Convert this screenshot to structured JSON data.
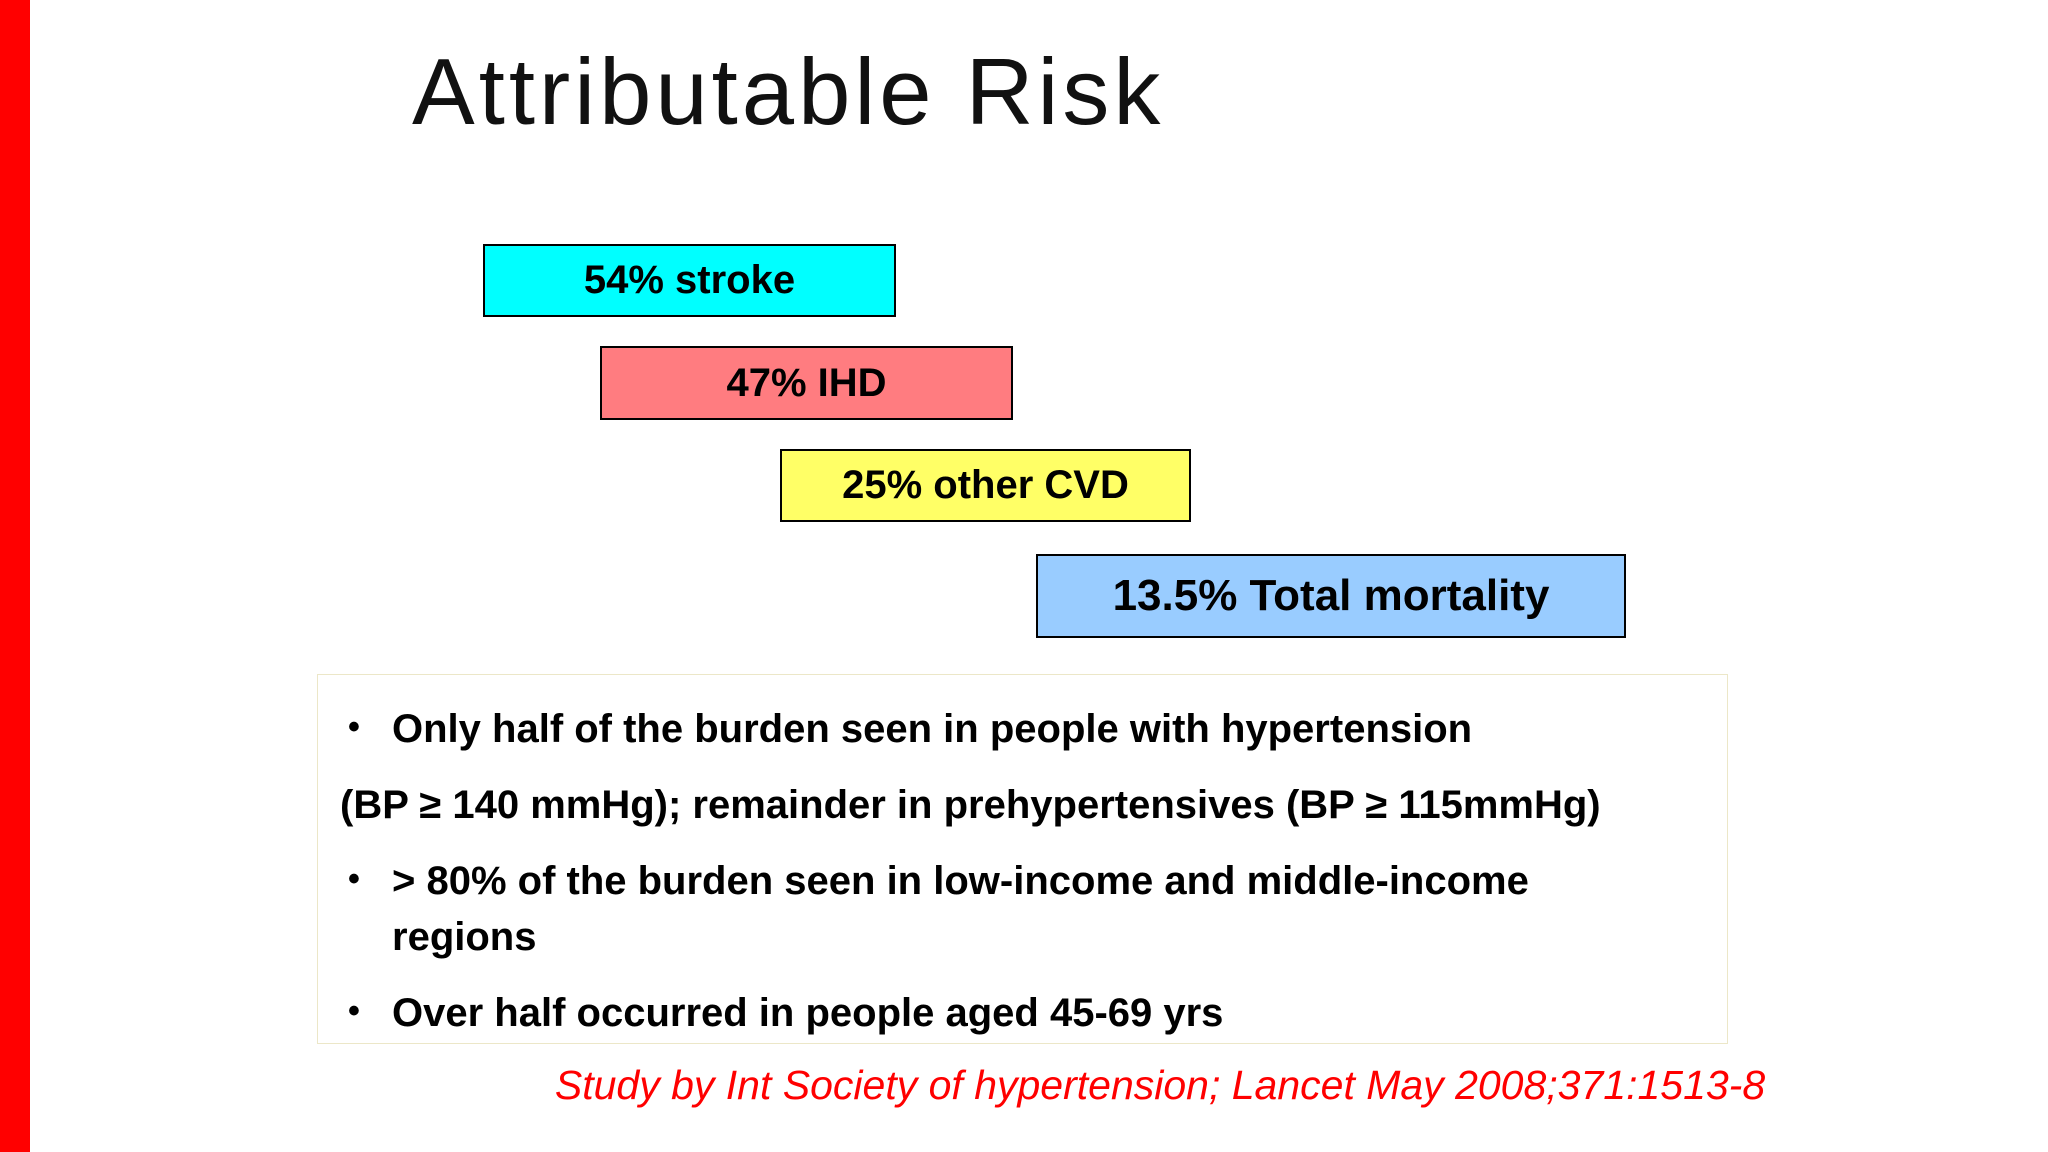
{
  "slide": {
    "title": "Attributable Risk",
    "bullet_char": "•",
    "accent_bar_color": "#ff0000",
    "citation_color": "#ff0000",
    "boxes": [
      {
        "label": "54% stroke",
        "color": "#00ffff"
      },
      {
        "label": "47% IHD",
        "color": "#ff7c80"
      },
      {
        "label": "25% other CVD",
        "color": "#ffff66"
      },
      {
        "label": "13.5% Total mortality",
        "color": "#99ccff"
      }
    ],
    "bullets": [
      {
        "bulleted": true,
        "text": "Only half of the burden seen in people with hypertension"
      },
      {
        "bulleted": false,
        "text": "(BP ≥ 140 mmHg); remainder in prehypertensives (BP ≥ 115mmHg)"
      },
      {
        "bulleted": true,
        "text": "> 80% of the burden seen in low-income and middle-income regions"
      },
      {
        "bulleted": true,
        "text": "Over half occurred in people aged 45-69 yrs"
      }
    ],
    "citation": "Study by Int Society of hypertension; Lancet May 2008;371:1513-8"
  }
}
